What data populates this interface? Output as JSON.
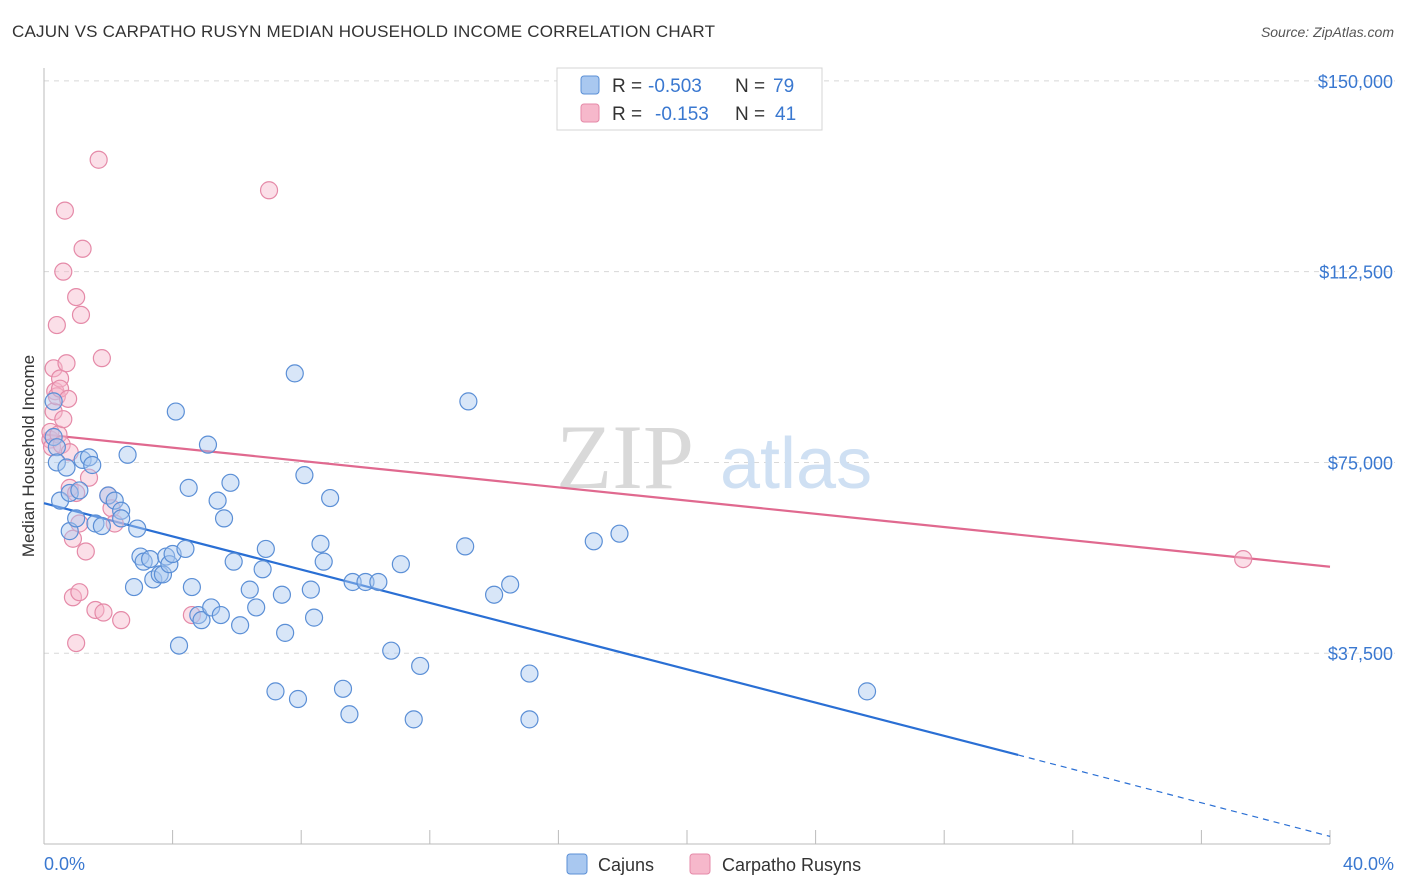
{
  "header": {
    "title": "CAJUN VS CARPATHO RUSYN MEDIAN HOUSEHOLD INCOME CORRELATION CHART",
    "source": "Source: ZipAtlas.com"
  },
  "watermark": {
    "part1": "ZIP",
    "part2": "atlas"
  },
  "colors": {
    "cajun_fill": "#a9c8f0",
    "cajun_stroke": "#5b8fd6",
    "cajun_line": "#2a6fd4",
    "rusyn_fill": "#f6b8cb",
    "rusyn_stroke": "#e58aa8",
    "rusyn_line": "#e0698f",
    "axis_label": "#3a78d0",
    "grid": "#d8d8d8"
  },
  "stats_box": {
    "rows": [
      {
        "r_label": "R =",
        "r_value": "-0.503",
        "n_label": "N =",
        "n_value": "79"
      },
      {
        "r_label": "R =",
        "r_value": "-0.153",
        "n_label": "N =",
        "n_value": "41"
      }
    ]
  },
  "chart_data": {
    "type": "scatter",
    "title": "CAJUN VS CARPATHO RUSYN MEDIAN HOUSEHOLD INCOME CORRELATION CHART",
    "xlabel": "",
    "ylabel": "Median Household Income",
    "xlim": [
      0,
      40
    ],
    "ylim": [
      0,
      160000
    ],
    "x_tick_labels": [
      "0.0%",
      "40.0%"
    ],
    "y_ticks": [
      37500,
      75000,
      112500,
      150000
    ],
    "y_tick_labels": [
      "$37,500",
      "$75,000",
      "$112,500",
      "$150,000"
    ],
    "grid": true,
    "legend_position": "bottom-center",
    "series": [
      {
        "name": "Cajuns",
        "stats": {
          "R": -0.503,
          "N": 79
        },
        "trend": {
          "x0": 0,
          "y0": 67000,
          "x1": 30.3,
          "y1": 17500,
          "dashed_to_x": 40,
          "dashed_to_y": 1500
        },
        "points": [
          [
            0.3,
            87000
          ],
          [
            0.3,
            80000
          ],
          [
            0.4,
            78000
          ],
          [
            0.4,
            75000
          ],
          [
            0.5,
            67500
          ],
          [
            0.7,
            74000
          ],
          [
            0.8,
            69000
          ],
          [
            0.8,
            61500
          ],
          [
            1.0,
            64000
          ],
          [
            1.1,
            69500
          ],
          [
            1.2,
            75500
          ],
          [
            1.4,
            76000
          ],
          [
            1.5,
            74500
          ],
          [
            1.6,
            63000
          ],
          [
            1.8,
            62500
          ],
          [
            2.0,
            68500
          ],
          [
            2.2,
            67500
          ],
          [
            2.4,
            65500
          ],
          [
            2.4,
            64000
          ],
          [
            2.6,
            76500
          ],
          [
            2.8,
            50500
          ],
          [
            2.9,
            62000
          ],
          [
            3.0,
            56500
          ],
          [
            3.1,
            55500
          ],
          [
            3.3,
            56000
          ],
          [
            3.4,
            52000
          ],
          [
            3.6,
            53000
          ],
          [
            3.7,
            53000
          ],
          [
            3.8,
            56500
          ],
          [
            3.9,
            55000
          ],
          [
            4.0,
            57000
          ],
          [
            4.1,
            85000
          ],
          [
            4.2,
            39000
          ],
          [
            4.4,
            58000
          ],
          [
            4.5,
            70000
          ],
          [
            4.6,
            50500
          ],
          [
            4.8,
            45000
          ],
          [
            4.9,
            44000
          ],
          [
            5.1,
            78500
          ],
          [
            5.2,
            46500
          ],
          [
            5.4,
            67500
          ],
          [
            5.5,
            45000
          ],
          [
            5.6,
            64000
          ],
          [
            5.8,
            71000
          ],
          [
            5.9,
            55500
          ],
          [
            6.1,
            43000
          ],
          [
            6.4,
            50000
          ],
          [
            6.6,
            46500
          ],
          [
            6.8,
            54000
          ],
          [
            6.9,
            58000
          ],
          [
            7.2,
            30000
          ],
          [
            7.4,
            49000
          ],
          [
            7.5,
            41500
          ],
          [
            7.8,
            92500
          ],
          [
            7.9,
            28500
          ],
          [
            8.1,
            72500
          ],
          [
            8.3,
            50000
          ],
          [
            8.4,
            44500
          ],
          [
            8.6,
            59000
          ],
          [
            8.7,
            55500
          ],
          [
            8.9,
            68000
          ],
          [
            9.3,
            30500
          ],
          [
            9.5,
            25500
          ],
          [
            9.6,
            51500
          ],
          [
            10.0,
            51500
          ],
          [
            10.4,
            51500
          ],
          [
            10.8,
            38000
          ],
          [
            11.1,
            55000
          ],
          [
            11.5,
            24500
          ],
          [
            11.7,
            35000
          ],
          [
            13.1,
            58500
          ],
          [
            13.2,
            87000
          ],
          [
            14.0,
            49000
          ],
          [
            14.5,
            51000
          ],
          [
            15.1,
            24500
          ],
          [
            15.1,
            33500
          ],
          [
            17.1,
            59500
          ],
          [
            17.9,
            61000
          ],
          [
            25.6,
            30000
          ]
        ]
      },
      {
        "name": "Carpatho Rusyns",
        "stats": {
          "R": -0.153,
          "N": 41
        },
        "trend": {
          "x0": 0,
          "y0": 80500,
          "x1": 40,
          "y1": 54500
        },
        "points": [
          [
            0.2,
            79500
          ],
          [
            0.2,
            81000
          ],
          [
            0.25,
            78000
          ],
          [
            0.3,
            93500
          ],
          [
            0.35,
            89000
          ],
          [
            0.3,
            85000
          ],
          [
            0.4,
            102000
          ],
          [
            0.4,
            88000
          ],
          [
            0.45,
            80500
          ],
          [
            0.5,
            91500
          ],
          [
            0.55,
            78500
          ],
          [
            0.5,
            89500
          ],
          [
            0.6,
            112500
          ],
          [
            0.6,
            83500
          ],
          [
            0.65,
            124500
          ],
          [
            0.7,
            94500
          ],
          [
            0.75,
            87500
          ],
          [
            0.8,
            77000
          ],
          [
            0.8,
            70000
          ],
          [
            0.9,
            60000
          ],
          [
            0.9,
            48500
          ],
          [
            1.0,
            39500
          ],
          [
            1.0,
            69000
          ],
          [
            1.0,
            107500
          ],
          [
            1.1,
            63000
          ],
          [
            1.15,
            104000
          ],
          [
            1.2,
            117000
          ],
          [
            1.1,
            49500
          ],
          [
            1.3,
            57500
          ],
          [
            1.4,
            72000
          ],
          [
            1.6,
            46000
          ],
          [
            1.7,
            134500
          ],
          [
            1.8,
            95500
          ],
          [
            1.85,
            45500
          ],
          [
            2.0,
            68500
          ],
          [
            2.1,
            66000
          ],
          [
            2.2,
            63000
          ],
          [
            2.4,
            44000
          ],
          [
            4.6,
            45000
          ],
          [
            7.0,
            128500
          ],
          [
            37.3,
            56000
          ]
        ]
      }
    ]
  }
}
